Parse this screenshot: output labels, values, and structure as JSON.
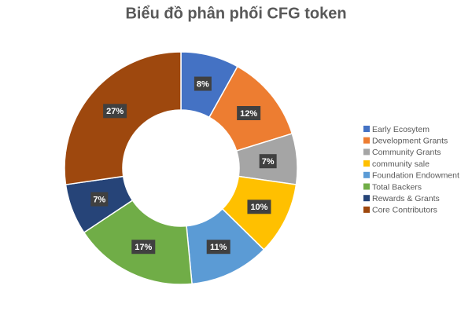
{
  "chart_data": {
    "type": "donut",
    "title": "Biểu đồ phân phối CFG token",
    "categories": [
      "Early Ecosytem",
      "Development Grants",
      "Community Grants",
      "community sale",
      "Foundation Endowment",
      "Total Backers",
      "Rewards & Grants",
      "Core Contributors"
    ],
    "values": [
      8,
      12,
      7,
      10,
      11,
      17,
      7,
      27
    ],
    "value_labels": [
      "8%",
      "12%",
      "7%",
      "10%",
      "11%",
      "17%",
      "7%",
      "27%"
    ],
    "colors": [
      "#4472c4",
      "#ed7d31",
      "#a5a5a5",
      "#ffc000",
      "#5b9bd5",
      "#70ad47",
      "#264478",
      "#9e480e"
    ],
    "legend": "right"
  }
}
